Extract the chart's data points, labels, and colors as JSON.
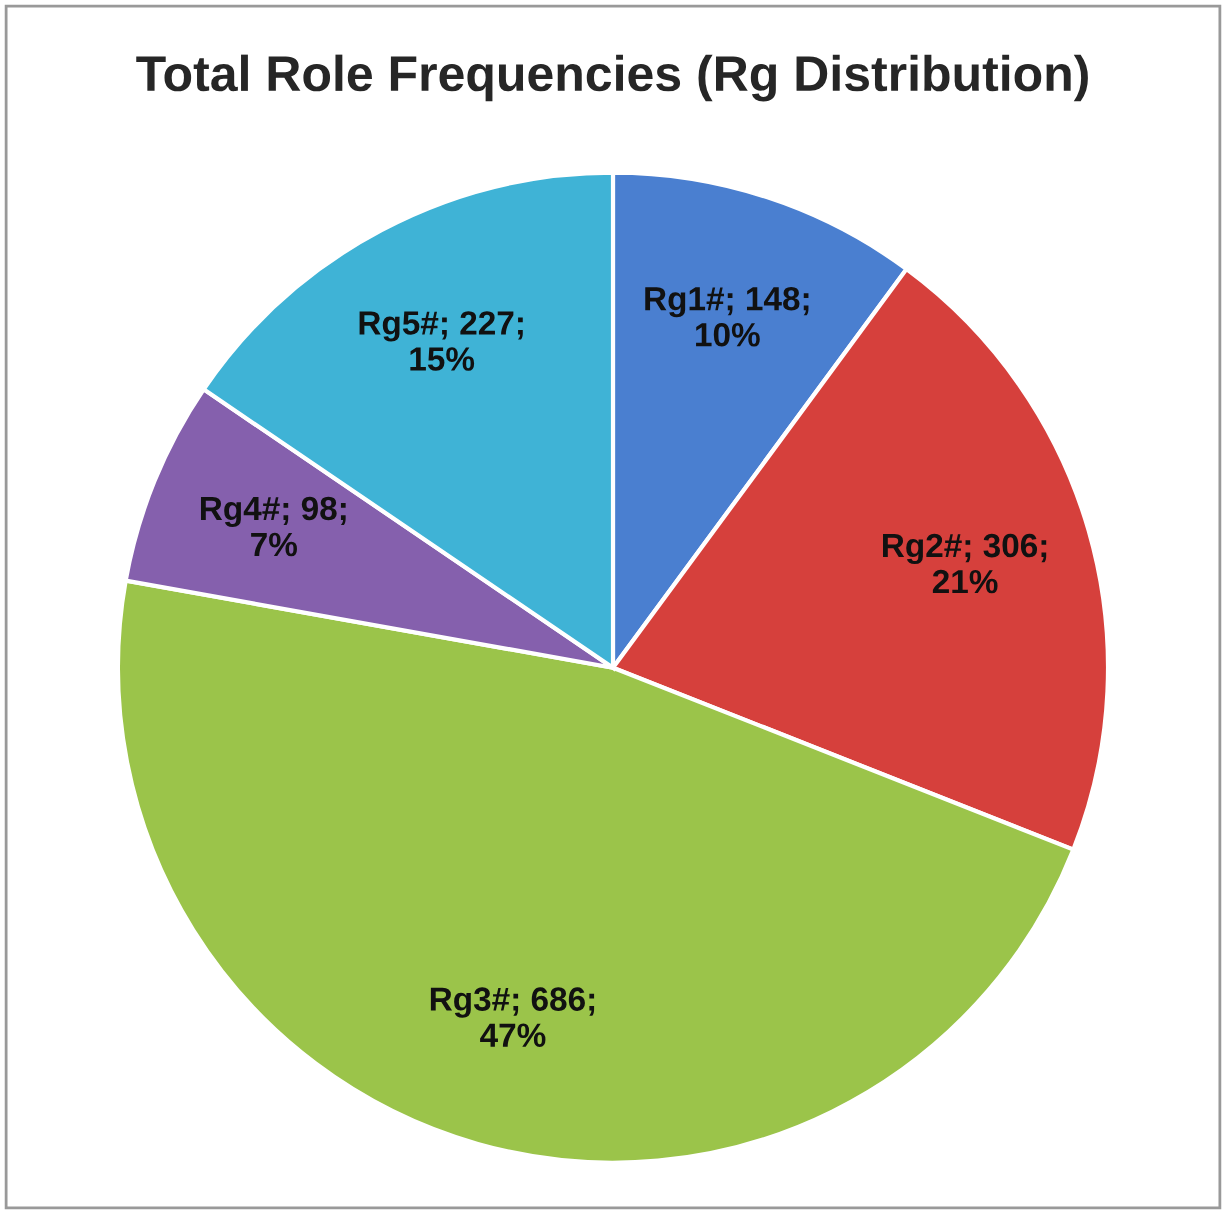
{
  "chart_data": {
    "type": "pie",
    "title": "Total Role Frequencies (Rg Distribution)",
    "categories": [
      "Rg1#",
      "Rg2#",
      "Rg3#",
      "Rg4#",
      "Rg5#"
    ],
    "values": [
      148,
      306,
      686,
      98,
      227
    ],
    "colors": [
      "#4a7fd0",
      "#d6403c",
      "#9bc44a",
      "#8560ad",
      "#3fb3d6"
    ],
    "value_labels": [
      "148;\n10%",
      "306;\n21%",
      "686;\n47%",
      "98;\n7%",
      "227;\n15%"
    ],
    "legend": false
  }
}
